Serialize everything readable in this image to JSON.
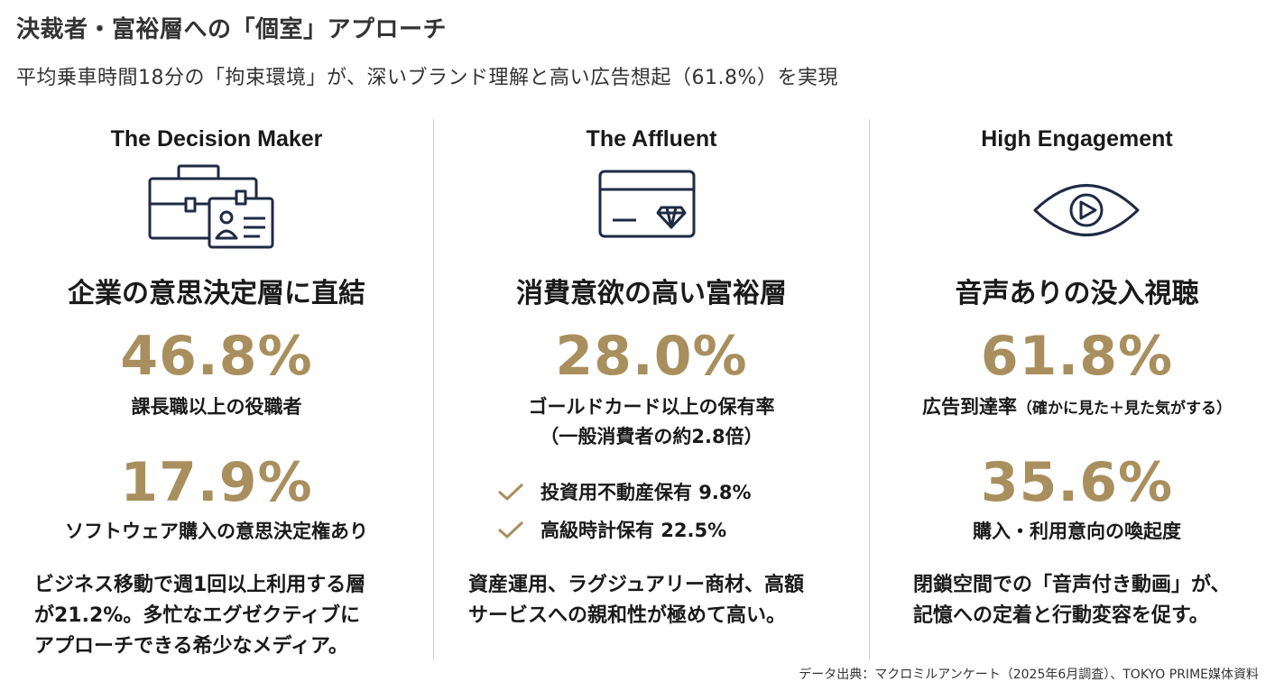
{
  "title": "決裁者・富裕層への「個室」アプローチ",
  "subtitle": "平均乗車時間18分の「拘束環境」が、深いブランド理解と高い広告想起（61.8%）を実現",
  "accent_color": "#a88f5d",
  "columns": [
    {
      "heading": "The Decision Maker",
      "icon": "briefcase-id-card-icon",
      "headline": "企業の意思決定層に直結",
      "stat1": "46.8%",
      "stat1_label": "課長職以上の役職者",
      "stat2": "17.9%",
      "stat2_label": "ソフトウェア購入の意思決定権あり",
      "body": [
        "ビジネス移動で週1回以上利用する層",
        "が21.2%。多忙なエグゼクティブに",
        "アプローチできる希少なメディア。"
      ]
    },
    {
      "heading": "The Affluent",
      "icon": "credit-card-diamond-icon",
      "headline": "消費意欲の高い富裕層",
      "stat1": "28.0%",
      "stat1_label": "ゴールドカード以上の保有率",
      "stat1_sublabel": "（一般消費者の約2.8倍）",
      "checks": [
        "投資用不動産保有 9.8%",
        "高級時計保有 22.5%"
      ],
      "body": [
        "資産運用、ラグジュアリー商材、高額",
        "サービスへの親和性が極めて高い。"
      ]
    },
    {
      "heading": "High Engagement",
      "icon": "eye-play-icon",
      "headline": "音声ありの没入視聴",
      "stat1": "61.8%",
      "stat1_label": "広告到達率",
      "stat1_note": "（確かに見た＋見た気がする）",
      "stat2": "35.6%",
      "stat2_label": "購入・利用意向の喚起度",
      "body": [
        "閉鎖空間での「音声付き動画」が、",
        "記憶への定着と行動変容を促す。"
      ]
    }
  ],
  "footer": "データ出典：マクロミルアンケート（2025年6月調査）、TOKYO PRIME媒体資料"
}
